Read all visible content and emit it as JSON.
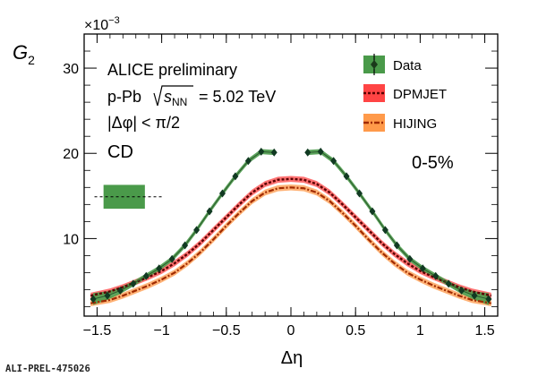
{
  "chart_data": {
    "type": "line",
    "ylabel": "G",
    "ylabel_sub": "2",
    "xlabel": "Δη",
    "y_multiplier": "×10",
    "y_multiplier_exp": "−3",
    "xlim": [
      -1.6,
      1.6
    ],
    "ylim": [
      0.9,
      34
    ],
    "x_ticks": [
      -1.5,
      -1,
      -0.5,
      0,
      0.5,
      1,
      1.5
    ],
    "x_tick_labels": [
      "−1.5",
      "−1",
      "−0.5",
      "0",
      "0.5",
      "1",
      "1.5"
    ],
    "y_ticks": [
      10,
      20,
      30
    ],
    "y_tick_labels": [
      "10",
      "20",
      "30"
    ],
    "annotations": {
      "line1": "ALICE preliminary",
      "line2_prefix": "p-Pb",
      "line2_s": "s",
      "line2_sub": "NN",
      "line2_value": "= 5.02 TeV",
      "line3": "|Δφ| < π/2",
      "line4": "CD",
      "centrality": "0-5%",
      "watermark": "ALI-PREL-475026"
    },
    "legend": [
      "Data",
      "DPMJET",
      "HIJING"
    ],
    "legend_position": "top-right",
    "normalization_box": {
      "x": -1.29,
      "y": 14.9,
      "half_width": 0.16,
      "half_height": 1.4,
      "line_to": -0.99
    },
    "series": [
      {
        "name": "Data",
        "color": "#1a7a1a",
        "band_color": "#4a9a4a",
        "x": [
          -1.53,
          -1.42,
          -1.32,
          -1.22,
          -1.12,
          -1.02,
          -0.92,
          -0.82,
          -0.73,
          -0.63,
          -0.53,
          -0.43,
          -0.33,
          -0.23,
          -0.13,
          0.13,
          0.23,
          0.33,
          0.43,
          0.53,
          0.63,
          0.73,
          0.82,
          0.92,
          1.02,
          1.12,
          1.22,
          1.32,
          1.42,
          1.53
        ],
        "y": [
          2.9,
          3.3,
          3.9,
          4.7,
          5.6,
          6.5,
          7.6,
          9.2,
          11.0,
          13.2,
          15.3,
          17.3,
          19.1,
          20.2,
          20.1,
          20.1,
          20.2,
          19.1,
          17.3,
          15.3,
          13.2,
          11.0,
          9.2,
          7.6,
          6.5,
          5.6,
          4.7,
          3.9,
          3.3,
          2.9
        ],
        "band_half_width": [
          0.7,
          0.5,
          0.4,
          0.3,
          0.3,
          0.3,
          0.3,
          0.3,
          0.3,
          0.3,
          0.3,
          0.3,
          0.3,
          0.3,
          0.3,
          0.3,
          0.3,
          0.3,
          0.3,
          0.3,
          0.3,
          0.3,
          0.3,
          0.3,
          0.3,
          0.3,
          0.3,
          0.4,
          0.5,
          0.7
        ]
      },
      {
        "name": "DPMJET",
        "color": "#8b0000",
        "band_color": "#ff4444",
        "x": [
          -1.55,
          -1.4,
          -1.3,
          -1.2,
          -1.1,
          -1.0,
          -0.9,
          -0.8,
          -0.7,
          -0.6,
          -0.5,
          -0.4,
          -0.3,
          -0.2,
          -0.1,
          0,
          0.1,
          0.2,
          0.3,
          0.4,
          0.5,
          0.6,
          0.7,
          0.8,
          0.9,
          1.0,
          1.1,
          1.2,
          1.3,
          1.4,
          1.55
        ],
        "y": [
          3.3,
          3.8,
          4.3,
          4.9,
          5.5,
          6.2,
          7.1,
          8.2,
          9.5,
          11.0,
          12.5,
          14.0,
          15.4,
          16.4,
          16.9,
          17.0,
          16.9,
          16.4,
          15.4,
          14.0,
          12.5,
          11.0,
          9.5,
          8.2,
          7.1,
          6.2,
          5.5,
          4.9,
          4.3,
          3.8,
          3.3
        ]
      },
      {
        "name": "HIJING",
        "color": "#c0400a",
        "band_color": "#ff9a4a",
        "x": [
          -1.55,
          -1.4,
          -1.3,
          -1.2,
          -1.1,
          -1.0,
          -0.9,
          -0.8,
          -0.7,
          -0.6,
          -0.5,
          -0.4,
          -0.3,
          -0.2,
          -0.1,
          0,
          0.1,
          0.2,
          0.3,
          0.4,
          0.5,
          0.6,
          0.7,
          0.8,
          0.9,
          1.0,
          1.1,
          1.2,
          1.3,
          1.4,
          1.55
        ],
        "y": [
          2.4,
          2.8,
          3.3,
          3.9,
          4.5,
          5.2,
          6.0,
          7.1,
          8.4,
          9.9,
          11.5,
          13.0,
          14.4,
          15.4,
          15.9,
          16.0,
          15.9,
          15.4,
          14.4,
          13.0,
          11.5,
          9.9,
          8.4,
          7.1,
          6.0,
          5.2,
          4.5,
          3.9,
          3.3,
          2.8,
          2.4
        ]
      }
    ]
  }
}
